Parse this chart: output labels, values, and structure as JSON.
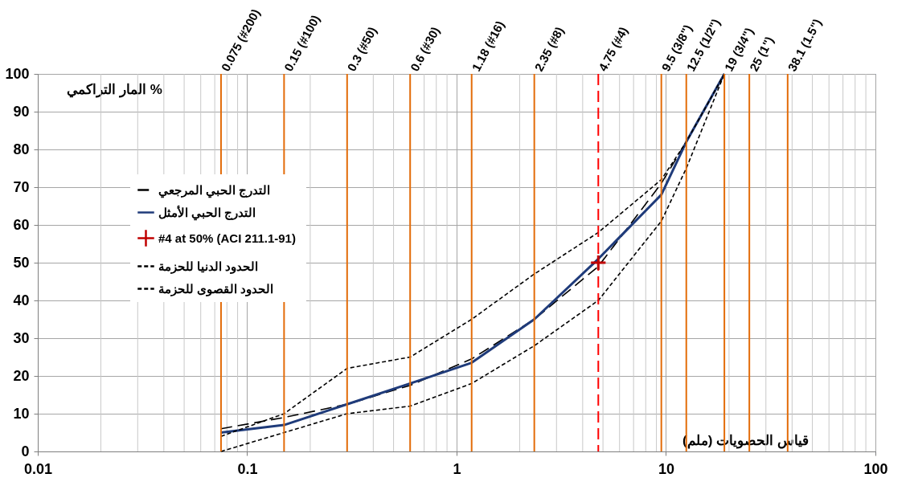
{
  "chart_data": {
    "type": "line",
    "xlabel": "قياس الحصويات (ملم)",
    "ylabel": "المار التراكمي %",
    "log": "x",
    "xlim": [
      0.01,
      100
    ],
    "xticks": [
      0.01,
      0.1,
      1,
      10,
      100
    ],
    "ylim": [
      0,
      100
    ],
    "yticks": [
      0,
      10,
      20,
      30,
      40,
      50,
      60,
      70,
      80,
      90,
      100
    ],
    "grid": true,
    "legend": "left",
    "x": [
      0.075,
      0.15,
      0.3,
      0.6,
      1.18,
      2.35,
      4.75,
      9.5,
      12.5,
      19
    ],
    "series": [
      {
        "name": "التدرج الحبي المرجعي",
        "color": "#000000",
        "line_style": "dashed",
        "marker": "none",
        "values": [
          6,
          9,
          12.5,
          17.5,
          24.5,
          35,
          49,
          71,
          82,
          100
        ]
      },
      {
        "name": "التدرج الحبي الأمثل",
        "color": "#1f3b7a",
        "line_style": "solid",
        "marker": "none",
        "values": [
          5,
          7,
          12.5,
          18,
          23.5,
          35,
          51,
          68,
          82,
          100
        ]
      },
      {
        "name": "#4 at 50%  (ACI 211.1-91)",
        "type": "scatter",
        "color": "#c00000",
        "marker": "cross",
        "x": [
          4.75
        ],
        "values": [
          50
        ]
      },
      {
        "name": "الحدود الدنيا للحزمة",
        "color": "#000000",
        "line_style": "dotted",
        "marker": "none",
        "values": [
          0,
          5,
          10,
          12,
          18,
          28,
          40,
          61,
          75,
          100
        ]
      },
      {
        "name": "الحدود القصوى للحزمة",
        "color": "#000000",
        "line_style": "dotted",
        "marker": "none",
        "values": [
          4,
          10,
          22,
          25,
          35,
          47,
          58,
          72,
          82,
          100
        ]
      }
    ],
    "ref_lines": [
      {
        "axis": "x",
        "value": 0.075,
        "label": "0.075  (#200)",
        "color": "#e36c09"
      },
      {
        "axis": "x",
        "value": 0.15,
        "label": "0.15  (#100)",
        "color": "#e36c09"
      },
      {
        "axis": "x",
        "value": 0.3,
        "label": "0.3  (#50)",
        "color": "#e36c09"
      },
      {
        "axis": "x",
        "value": 0.6,
        "label": "0.6  (#30)",
        "color": "#e36c09"
      },
      {
        "axis": "x",
        "value": 1.18,
        "label": "1.18  (#16)",
        "color": "#e36c09"
      },
      {
        "axis": "x",
        "value": 2.35,
        "label": "2.35  (#8)",
        "color": "#e36c09"
      },
      {
        "axis": "x",
        "value": 4.75,
        "label": "4.75  (#4)",
        "color": "#ff0000",
        "line_style": "dashed"
      },
      {
        "axis": "x",
        "value": 9.5,
        "label": "9.5  (3/8\")",
        "color": "#e36c09"
      },
      {
        "axis": "x",
        "value": 12.5,
        "label": "12.5  (1/2\")",
        "color": "#e36c09"
      },
      {
        "axis": "x",
        "value": 19,
        "label": "19  (3/4\")",
        "color": "#e36c09"
      },
      {
        "axis": "x",
        "value": 25,
        "label": "25  (1\")",
        "color": "#e36c09"
      },
      {
        "axis": "x",
        "value": 38.1,
        "label": "38.1  (1.5\")",
        "color": "#e36c09"
      }
    ]
  }
}
